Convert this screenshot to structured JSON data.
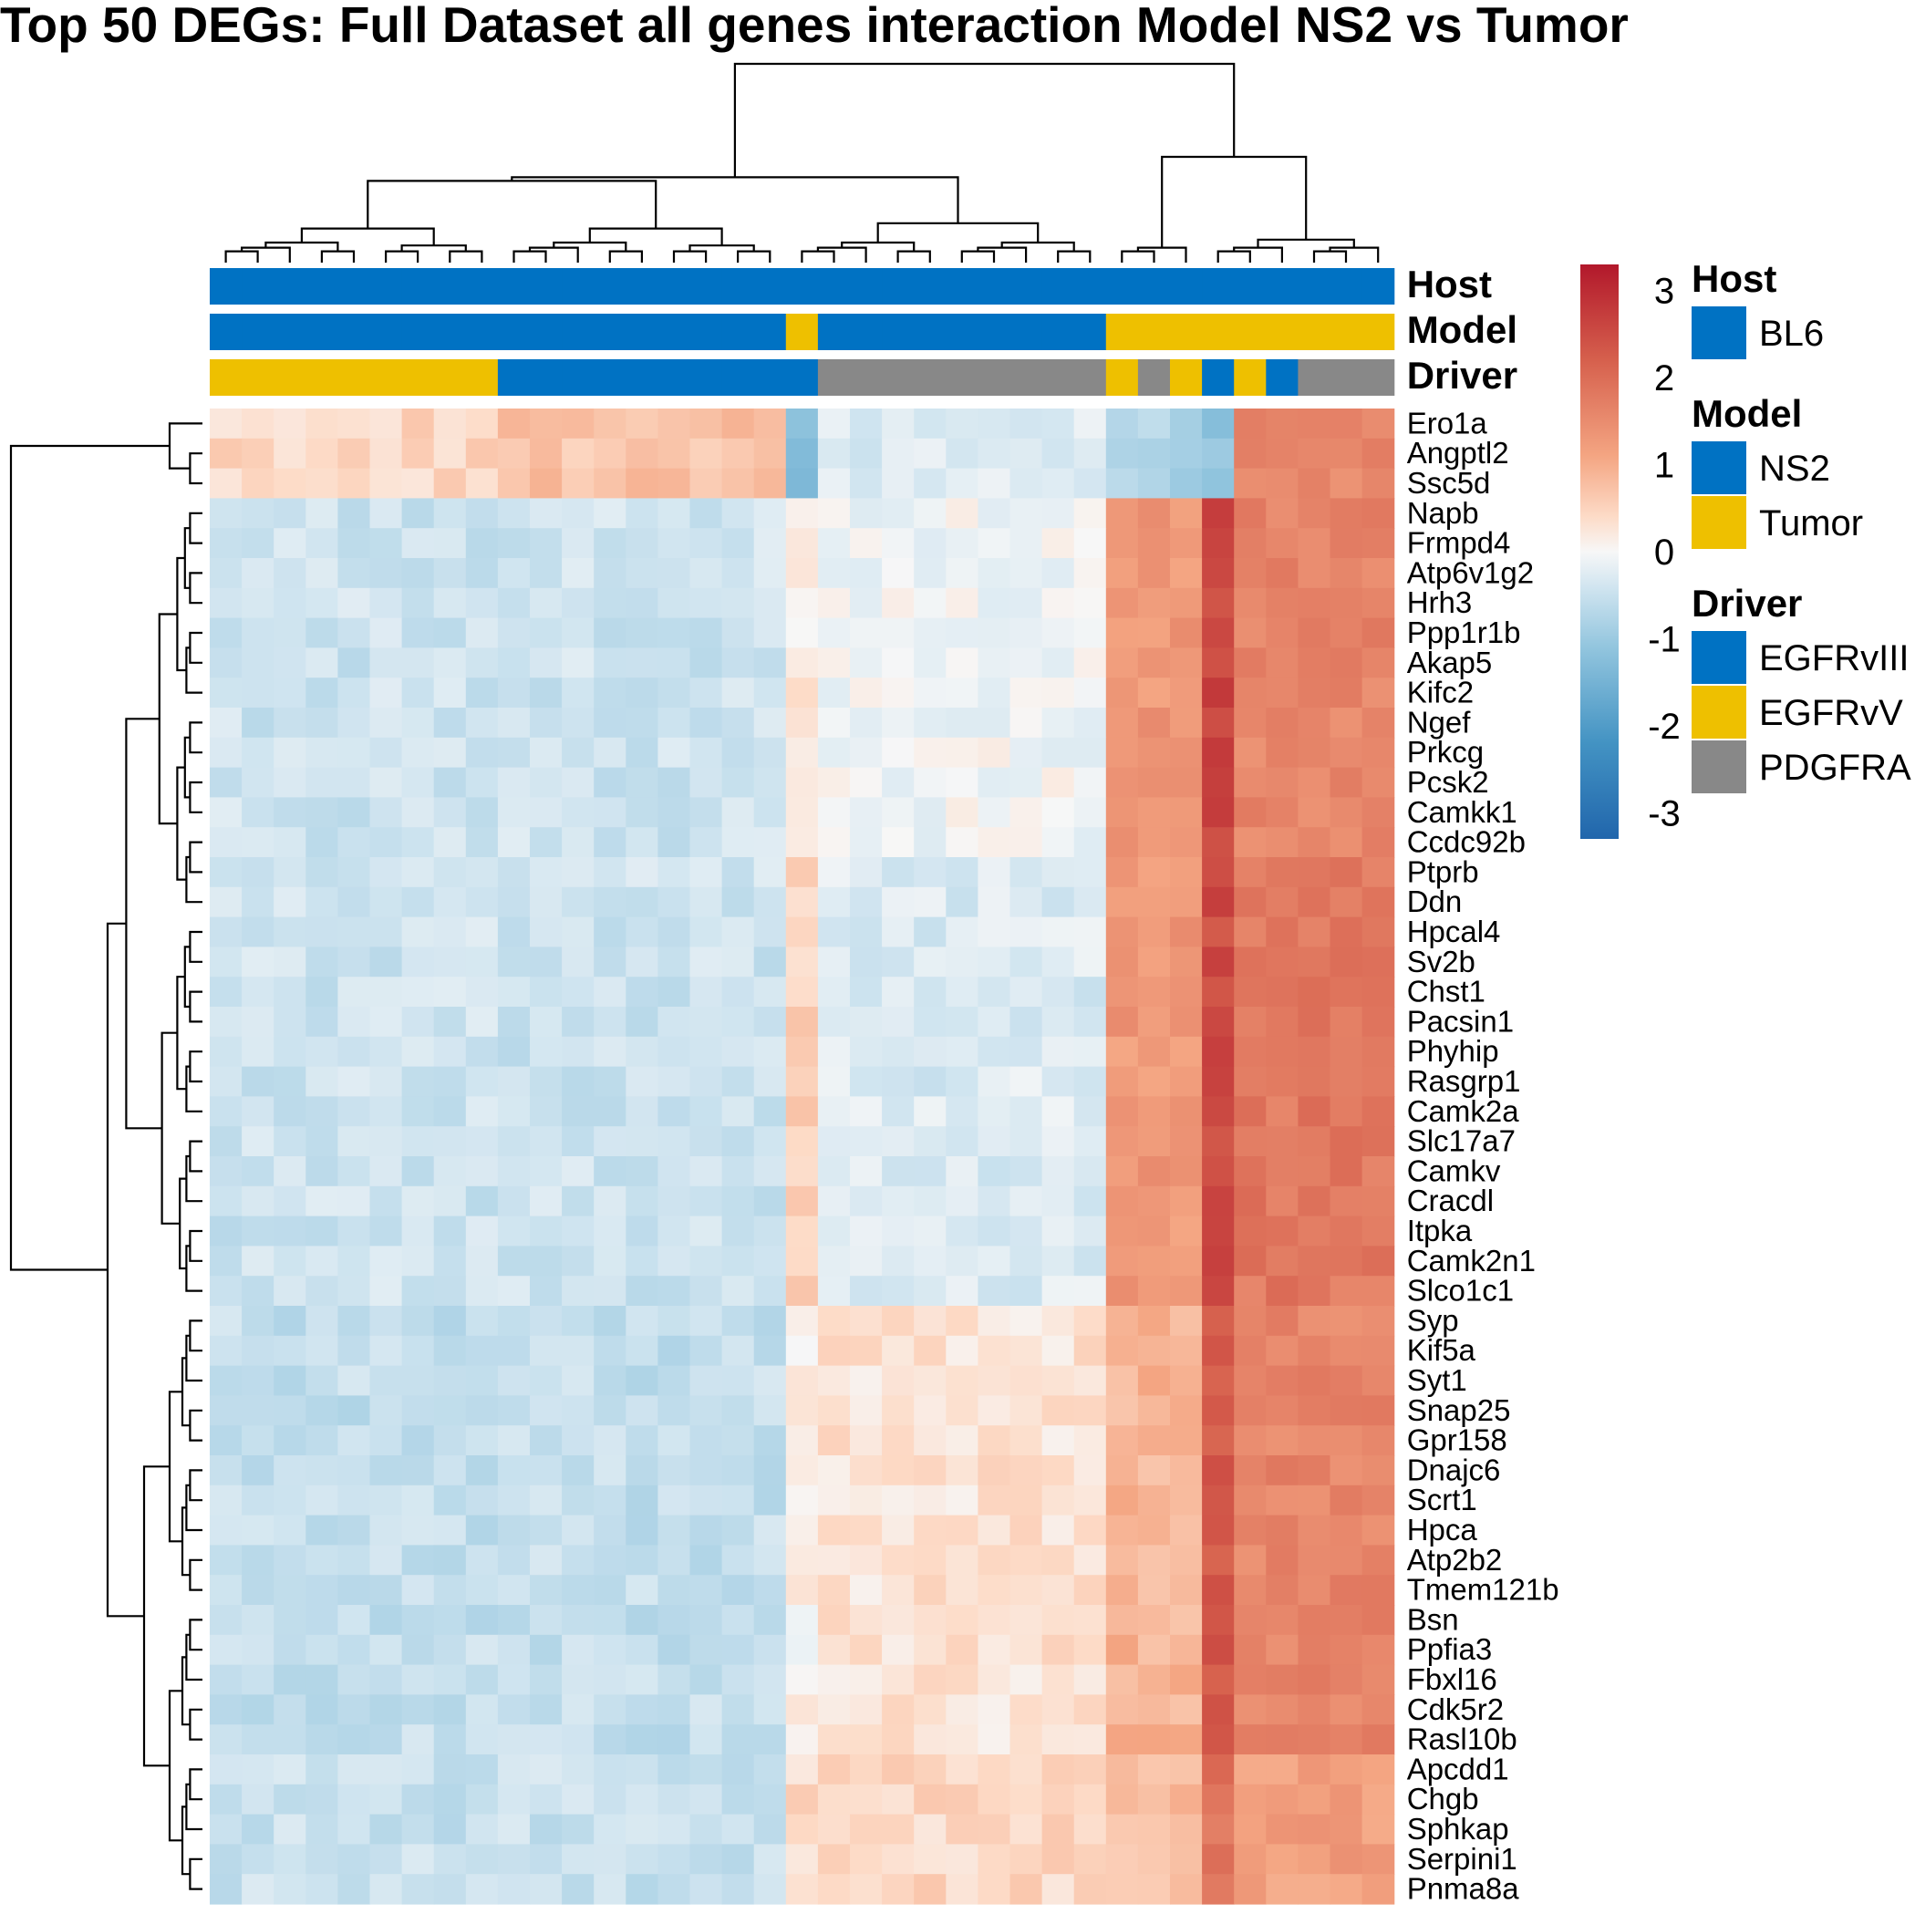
{
  "chart_data": {
    "type": "heatmap",
    "title": "Top 50 DEGs: Full Dataset all genes interaction Model NS2 vs Tumor",
    "color_scale": {
      "min": -3.3,
      "max": 3.3,
      "ticks": [
        3,
        2,
        1,
        0,
        -1,
        -2,
        -3
      ],
      "stops": [
        {
          "v": -3.3,
          "color": "#2166ac"
        },
        {
          "v": -2.2,
          "color": "#4393c3"
        },
        {
          "v": -1.1,
          "color": "#92c5de"
        },
        {
          "v": -0.4,
          "color": "#d1e5f0"
        },
        {
          "v": 0.0,
          "color": "#f7f7f7"
        },
        {
          "v": 0.4,
          "color": "#fddbc7"
        },
        {
          "v": 1.1,
          "color": "#f4a582"
        },
        {
          "v": 2.2,
          "color": "#d6604d"
        },
        {
          "v": 3.3,
          "color": "#b2182b"
        }
      ]
    },
    "annotation_tracks": [
      {
        "name": "Host",
        "values": [
          "BL6",
          "BL6",
          "BL6",
          "BL6",
          "BL6",
          "BL6",
          "BL6",
          "BL6",
          "BL6",
          "BL6",
          "BL6",
          "BL6",
          "BL6",
          "BL6",
          "BL6",
          "BL6",
          "BL6",
          "BL6",
          "BL6",
          "BL6",
          "BL6",
          "BL6",
          "BL6",
          "BL6",
          "BL6",
          "BL6",
          "BL6",
          "BL6",
          "BL6",
          "BL6",
          "BL6",
          "BL6",
          "BL6",
          "BL6",
          "BL6",
          "BL6",
          "BL6"
        ]
      },
      {
        "name": "Model",
        "values": [
          "NS2",
          "NS2",
          "NS2",
          "NS2",
          "NS2",
          "NS2",
          "NS2",
          "NS2",
          "NS2",
          "NS2",
          "NS2",
          "NS2",
          "NS2",
          "NS2",
          "NS2",
          "NS2",
          "NS2",
          "NS2",
          "Tumor",
          "NS2",
          "NS2",
          "NS2",
          "NS2",
          "NS2",
          "NS2",
          "NS2",
          "NS2",
          "NS2",
          "Tumor",
          "Tumor",
          "Tumor",
          "Tumor",
          "Tumor",
          "Tumor",
          "Tumor",
          "Tumor",
          "Tumor"
        ]
      },
      {
        "name": "Driver",
        "values": [
          "EGFRvV",
          "EGFRvV",
          "EGFRvV",
          "EGFRvV",
          "EGFRvV",
          "EGFRvV",
          "EGFRvV",
          "EGFRvV",
          "EGFRvV",
          "EGFRvIII",
          "EGFRvIII",
          "EGFRvIII",
          "EGFRvIII",
          "EGFRvIII",
          "EGFRvIII",
          "EGFRvIII",
          "EGFRvIII",
          "EGFRvIII",
          "EGFRvIII",
          "PDGFRA",
          "PDGFRA",
          "PDGFRA",
          "PDGFRA",
          "PDGFRA",
          "PDGFRA",
          "PDGFRA",
          "PDGFRA",
          "PDGFRA",
          "EGFRvV",
          "PDGFRA",
          "EGFRvV",
          "EGFRvIII",
          "EGFRvV",
          "EGFRvIII",
          "PDGFRA",
          "PDGFRA",
          "PDGFRA"
        ]
      }
    ],
    "legends": [
      {
        "title": "Host",
        "items": [
          {
            "label": "BL6",
            "color": "#0072c3"
          }
        ]
      },
      {
        "title": "Model",
        "items": [
          {
            "label": "NS2",
            "color": "#0072c3"
          },
          {
            "label": "Tumor",
            "color": "#eec000"
          }
        ]
      },
      {
        "title": "Driver",
        "items": [
          {
            "label": "EGFRvIII",
            "color": "#0072c3"
          },
          {
            "label": "EGFRvV",
            "color": "#eec000"
          },
          {
            "label": "PDGFRA",
            "color": "#888888"
          }
        ]
      }
    ],
    "rows": [
      "Ero1a",
      "Angptl2",
      "Ssc5d",
      "Napb",
      "Frmpd4",
      "Atp6v1g2",
      "Hrh3",
      "Ppp1r1b",
      "Akap5",
      "Kifc2",
      "Ngef",
      "Prkcg",
      "Pcsk2",
      "Camkk1",
      "Ccdc92b",
      "Ptprb",
      "Ddn",
      "Hpcal4",
      "Sv2b",
      "Chst1",
      "Pacsin1",
      "Phyhip",
      "Rasgrp1",
      "Camk2a",
      "Slc17a7",
      "Camkv",
      "Cracdl",
      "Itpka",
      "Camk2n1",
      "Slco1c1",
      "Syp",
      "Kif5a",
      "Syt1",
      "Snap25",
      "Gpr158",
      "Dnajc6",
      "Scrt1",
      "Hpca",
      "Atp2b2",
      "Tmem121b",
      "Bsn",
      "Ppfia3",
      "Fbxl16",
      "Cdk5r2",
      "Rasl10b",
      "Apcdd1",
      "Chgb",
      "Sphkap",
      "Serpini1",
      "Pnma8a"
    ],
    "group_levels": {
      "top": {
        "g1": 0.45,
        "g2": -1.3,
        "g3": -0.3,
        "g4": -0.8,
        "g5": -1.2,
        "g6": 1.6
      },
      "neuro_a": {
        "g1": -0.45,
        "g2": 0.2,
        "g3": -0.05,
        "g4": 1.3,
        "g5": 2.6,
        "g6": 1.6
      },
      "neuro_b": {
        "g1": -0.45,
        "g2": 0.5,
        "g3": -0.3,
        "g4": 1.3,
        "g5": 2.5,
        "g6": 1.8
      },
      "neuro_c": {
        "g1": -0.55,
        "g2": 0.1,
        "g3": 0.3,
        "g4": 0.9,
        "g5": 2.3,
        "g6": 1.6
      },
      "neuro_d": {
        "g1": -0.5,
        "g2": 0.4,
        "g3": 0.45,
        "g4": 0.8,
        "g5": 1.9,
        "g6": 1.2
      }
    },
    "dendrogram_col": "hierarchical; major split columns 1-18 vs 19-37",
    "dendrogram_row": "hierarchical; Ero1a/Angptl2/Ssc5d separated from remaining genes"
  }
}
